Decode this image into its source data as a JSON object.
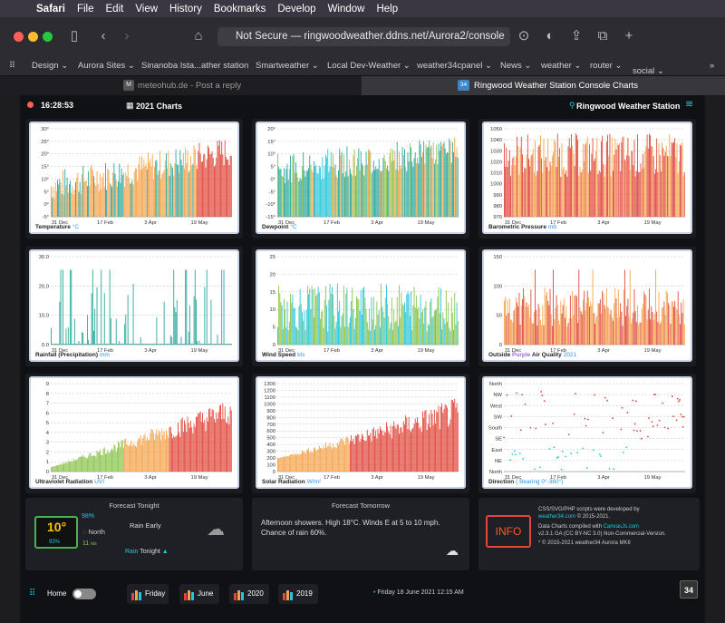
{
  "menubar": {
    "app": "Safari",
    "items": [
      "File",
      "Edit",
      "View",
      "History",
      "Bookmarks",
      "Develop",
      "Window",
      "Help"
    ]
  },
  "toolbar": {
    "url_prefix": "Not Secure — ",
    "url": "ringwoodweather.ddns.net/Aurora2/console"
  },
  "bookmarks": [
    "Design ⌄",
    "Aurora Sites ⌄",
    "Sinanoba Ista...ather station",
    "Smartweather ⌄",
    "Local Dev-Weather ⌄",
    "weather34cpanel ⌄",
    "News ⌄",
    "weather ⌄",
    "router ⌄",
    "social ⌄"
  ],
  "tabs": [
    {
      "label": "meteohub.de - Post a reply",
      "badge": "M"
    },
    {
      "label": "Ringwood Weather Station Console Charts",
      "badge": "34"
    }
  ],
  "header": {
    "time": "16:28:53",
    "title": "2021 Charts",
    "station": "Ringwood Weather Station"
  },
  "colors": {
    "orange": "#f5a34a",
    "red": "#e0463a",
    "green": "#8bc34a",
    "teal": "#26a69a",
    "blue": "#26c6da",
    "purple": "#9c6ad6"
  },
  "charts": [
    {
      "id": "temperature",
      "caption": "Temperature",
      "unit": "°C",
      "type": "bar",
      "xticks": [
        "31 Dec",
        "17 Feb",
        "3 Apr",
        "19 May"
      ],
      "yticks": [
        "30°",
        "25°",
        "20°",
        "15°",
        "10°",
        "5°",
        "0°",
        "-5°"
      ],
      "ylim": [
        -5,
        30
      ]
    },
    {
      "id": "dewpoint",
      "caption": "Dewpoint",
      "unit": "°C",
      "type": "bar",
      "xticks": [
        "31 Dec",
        "17 Feb",
        "3 Apr",
        "19 May"
      ],
      "yticks": [
        "20°",
        "15°",
        "10°",
        "5°",
        "0°",
        "-5°",
        "-10°",
        "-15°"
      ],
      "ylim": [
        -15,
        20
      ]
    },
    {
      "id": "pressure",
      "caption": "Barometric Pressure",
      "unit": "mb",
      "type": "bar",
      "xticks": [
        "31 Dec",
        "17 Feb",
        "3 Apr",
        "19 May"
      ],
      "yticks": [
        "1050",
        "1040",
        "1030",
        "1020",
        "1010",
        "1000",
        "990",
        "980",
        "970"
      ],
      "ylim": [
        970,
        1050
      ]
    },
    {
      "id": "rainfall",
      "caption": "Rainfall (Precipitation)",
      "unit": "mm",
      "type": "bar",
      "xticks": [
        "31 Dec",
        "17 Feb",
        "3 Apr",
        "19 May"
      ],
      "yticks": [
        "30.0",
        "20.0",
        "10.0",
        "0.0"
      ],
      "ylim": [
        0,
        30
      ]
    },
    {
      "id": "wind",
      "caption": "Wind Speed",
      "unit": "kts",
      "type": "bar",
      "xticks": [
        "31 Dec",
        "17 Feb",
        "3 Apr",
        "19 May"
      ],
      "yticks": [
        "25",
        "20",
        "15",
        "10",
        "5",
        "0"
      ],
      "ylim": [
        0,
        25
      ]
    },
    {
      "id": "airquality",
      "caption": "Outside",
      "caption2": "Purple",
      "caption3": "Air Quality",
      "unit": "2021",
      "type": "bar",
      "xticks": [
        "31 Dec",
        "17 Feb",
        "3 Apr",
        "19 May"
      ],
      "yticks": [
        "150",
        "100",
        "50",
        "0"
      ],
      "ylim": [
        0,
        150
      ]
    },
    {
      "id": "uv",
      "caption": "Ultraviolet Radiation",
      "unit": "UVI",
      "type": "bar",
      "xticks": [
        "31 Dec",
        "17 Feb",
        "3 Apr",
        "19 May"
      ],
      "yticks": [
        "9",
        "8",
        "7",
        "6",
        "5",
        "4",
        "3",
        "2",
        "1",
        "0"
      ],
      "ylim": [
        0,
        9
      ]
    },
    {
      "id": "solar",
      "caption": "Solar Radiation",
      "unit": "W/m²",
      "type": "bar",
      "xticks": [
        "31 Dec",
        "17 Feb",
        "3 Apr",
        "19 May"
      ],
      "yticks": [
        "1300",
        "1200",
        "1100",
        "1000",
        "900",
        "800",
        "700",
        "600",
        "500",
        "400",
        "300",
        "200",
        "100",
        "0"
      ],
      "ylim": [
        0,
        1300
      ]
    },
    {
      "id": "direction",
      "caption": "Direction",
      "unit": "( Bearing 0°-360°)",
      "type": "scatter",
      "xticks": [
        "31 Dec",
        "17 Feb",
        "3 Apr",
        "19 May"
      ],
      "yticks": [
        "North",
        "NW",
        "West",
        "SW",
        "South",
        "SE",
        "East",
        "NE",
        "North"
      ]
    }
  ],
  "forecast_tonight": {
    "title": "Forecast Tonight",
    "temp": "10°",
    "humidity": "93%",
    "dew": "98%",
    "wind_dir": "North",
    "wind": "11",
    "wind_unit": "kts",
    "summary": "Rain Early",
    "alert_prefix": "Rain",
    "alert": "Tonight"
  },
  "forecast_tomorrow": {
    "title": "Forecast Tomorrow",
    "text": "Afternoon showers. High 18°C. Winds E at 5 to 10 mph. Chance of rain 60%."
  },
  "info": {
    "label": "INFO",
    "line1": "CSS/SVG/PHP scripts were developed by",
    "line2": "weather34.com",
    "line2b": " © 2015-2021.",
    "line3": "Data Charts compiled with ",
    "line3b": "CanvasJs.com",
    "line4": "v2.3.1 GA (CC BY-NC 3.0) Non-Commercial-Version.",
    "line5": "* © 2015-2021 weather34 Aurora MKII"
  },
  "footer": {
    "home": "Home",
    "buttons": [
      "Friday",
      "June",
      "2020",
      "2019"
    ],
    "date": "Friday 18 June 2021 12:15 AM",
    "logo": "34"
  }
}
